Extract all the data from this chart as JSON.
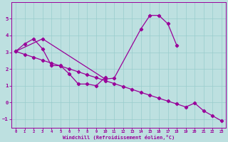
{
  "line1_x": [
    0,
    1,
    2,
    3,
    4,
    5,
    6,
    7,
    8,
    9,
    10
  ],
  "line1_y": [
    3.05,
    3.5,
    3.8,
    3.2,
    2.2,
    2.2,
    1.7,
    1.1,
    1.1,
    1.0,
    1.5
  ],
  "line2_x": [
    0,
    3,
    10,
    11,
    14,
    15,
    16,
    17,
    18
  ],
  "line2_y": [
    3.05,
    3.8,
    1.4,
    1.45,
    4.4,
    5.2,
    5.2,
    4.7,
    3.4
  ],
  "line3_x": [
    0,
    1,
    2,
    3,
    4,
    5,
    6,
    7,
    8,
    9,
    10,
    11,
    12,
    13,
    14,
    15,
    16,
    17,
    18,
    19,
    20,
    21,
    22,
    23
  ],
  "line3_y": [
    3.05,
    2.87,
    2.7,
    2.52,
    2.35,
    2.18,
    2.0,
    1.83,
    1.65,
    1.48,
    1.3,
    1.13,
    0.95,
    0.78,
    0.6,
    0.43,
    0.25,
    0.08,
    -0.09,
    -0.27,
    -0.04,
    -0.5,
    -0.8,
    -1.1
  ],
  "color": "#990099",
  "bg_color": "#bde0e0",
  "grid_color": "#99cccc",
  "xlabel": "Windchill (Refroidissement éolien,°C)",
  "xlim": [
    -0.5,
    23.5
  ],
  "ylim": [
    -1.5,
    6.0
  ],
  "xticks": [
    0,
    1,
    2,
    3,
    4,
    5,
    6,
    7,
    8,
    9,
    10,
    11,
    12,
    13,
    14,
    15,
    16,
    17,
    18,
    19,
    20,
    21,
    22,
    23
  ],
  "yticks": [
    -1,
    0,
    1,
    2,
    3,
    4,
    5
  ]
}
